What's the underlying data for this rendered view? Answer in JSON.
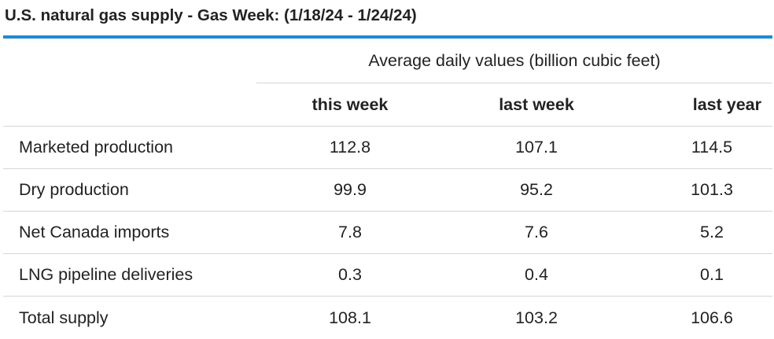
{
  "title": "U.S. natural gas supply - Gas Week: (1/18/24 - 1/24/24)",
  "accent_color": "#1e8bd1",
  "table": {
    "units_label": "Average daily values (billion cubic feet)",
    "headers": [
      "this week",
      "last week",
      "last year"
    ],
    "rows": [
      {
        "label": "Marketed production",
        "values": [
          "112.8",
          "107.1",
          "114.5"
        ]
      },
      {
        "label": "Dry production",
        "values": [
          "99.9",
          "95.2",
          "101.3"
        ]
      },
      {
        "label": "Net Canada imports",
        "values": [
          "7.8",
          "7.6",
          "5.2"
        ]
      },
      {
        "label": "LNG pipeline deliveries",
        "values": [
          "0.3",
          "0.4",
          "0.1"
        ]
      },
      {
        "label": "Total supply",
        "values": [
          "108.1",
          "103.2",
          "106.6"
        ]
      }
    ]
  }
}
